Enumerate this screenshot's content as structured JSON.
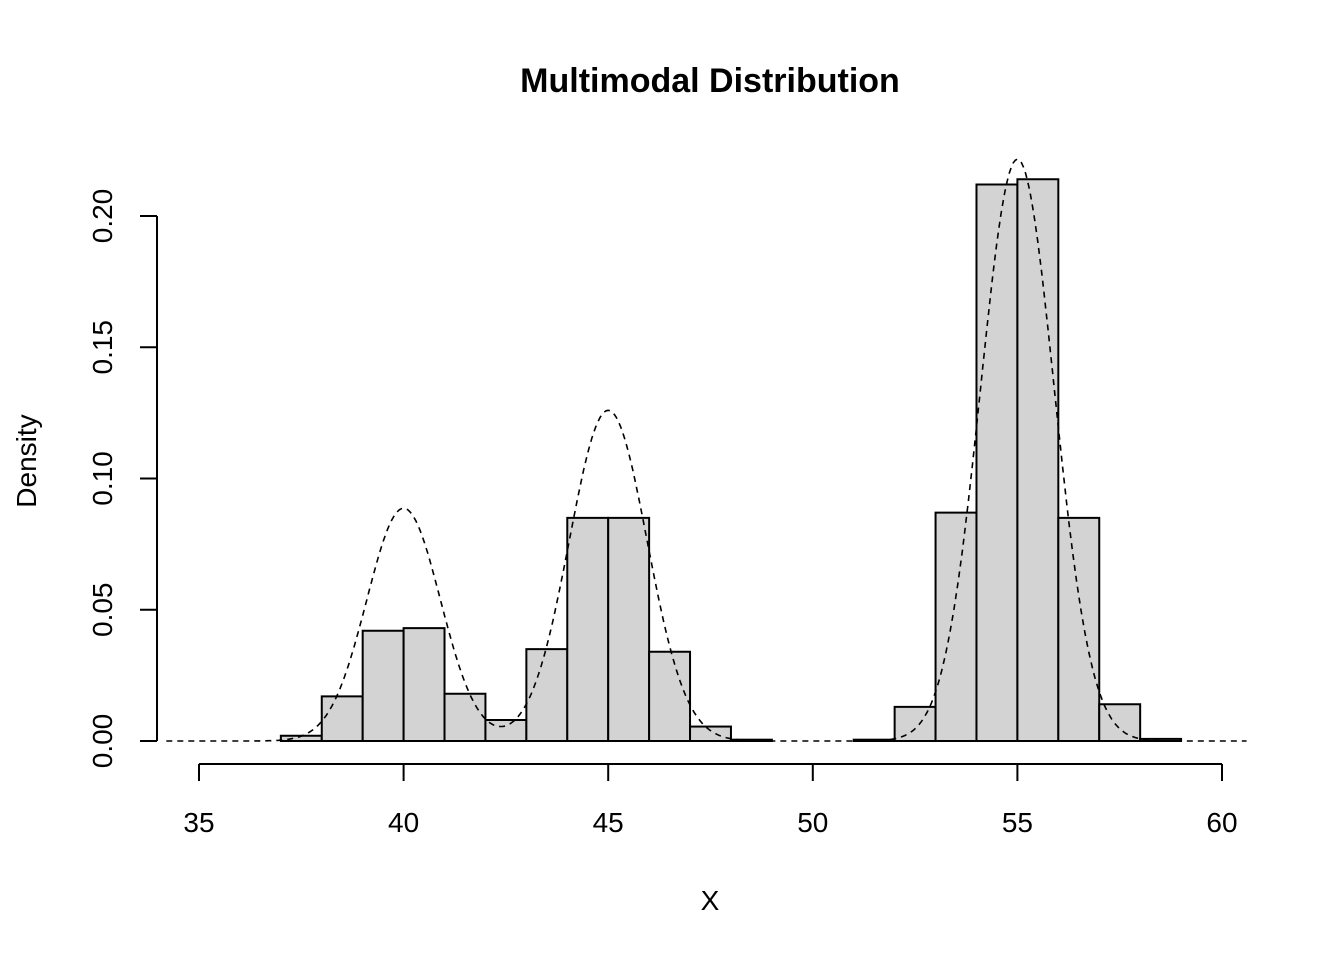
{
  "chart_data": {
    "type": "bar",
    "title": "Multimodal Distribution",
    "xlabel": "X",
    "ylabel": "Density",
    "xlim": [
      35,
      60
    ],
    "ylim": [
      0,
      0.2
    ],
    "x_ticks": [
      "35",
      "40",
      "45",
      "50",
      "55",
      "60"
    ],
    "y_ticks": [
      "0.00",
      "0.05",
      "0.10",
      "0.15",
      "0.20"
    ],
    "bins": [
      {
        "x0": 35,
        "x1": 36,
        "value": 0.0
      },
      {
        "x0": 36,
        "x1": 37,
        "value": 0.0
      },
      {
        "x0": 37,
        "x1": 38,
        "value": 0.002
      },
      {
        "x0": 38,
        "x1": 39,
        "value": 0.017
      },
      {
        "x0": 39,
        "x1": 40,
        "value": 0.042
      },
      {
        "x0": 40,
        "x1": 41,
        "value": 0.043
      },
      {
        "x0": 41,
        "x1": 42,
        "value": 0.018
      },
      {
        "x0": 42,
        "x1": 43,
        "value": 0.008
      },
      {
        "x0": 43,
        "x1": 44,
        "value": 0.035
      },
      {
        "x0": 44,
        "x1": 45,
        "value": 0.085
      },
      {
        "x0": 45,
        "x1": 46,
        "value": 0.085
      },
      {
        "x0": 46,
        "x1": 47,
        "value": 0.034
      },
      {
        "x0": 47,
        "x1": 48,
        "value": 0.0055
      },
      {
        "x0": 48,
        "x1": 49,
        "value": 0.0005
      },
      {
        "x0": 49,
        "x1": 50,
        "value": 0.0
      },
      {
        "x0": 50,
        "x1": 51,
        "value": 0.0
      },
      {
        "x0": 51,
        "x1": 52,
        "value": 0.0005
      },
      {
        "x0": 52,
        "x1": 53,
        "value": 0.013
      },
      {
        "x0": 53,
        "x1": 54,
        "value": 0.087
      },
      {
        "x0": 54,
        "x1": 55,
        "value": 0.212
      },
      {
        "x0": 55,
        "x1": 56,
        "value": 0.214
      },
      {
        "x0": 56,
        "x1": 57,
        "value": 0.085
      },
      {
        "x0": 57,
        "x1": 58,
        "value": 0.014
      },
      {
        "x0": 58,
        "x1": 59,
        "value": 0.0008
      },
      {
        "x0": 59,
        "x1": 60,
        "value": 0.0
      }
    ],
    "density_curve": {
      "line_style": "dashed",
      "components": [
        {
          "weight": 0.2,
          "mean": 40,
          "sd": 0.9
        },
        {
          "weight": 0.3,
          "mean": 45,
          "sd": 0.95
        },
        {
          "weight": 0.5,
          "mean": 55,
          "sd": 0.9
        }
      ],
      "x_range": [
        34.2,
        60.6
      ]
    }
  }
}
